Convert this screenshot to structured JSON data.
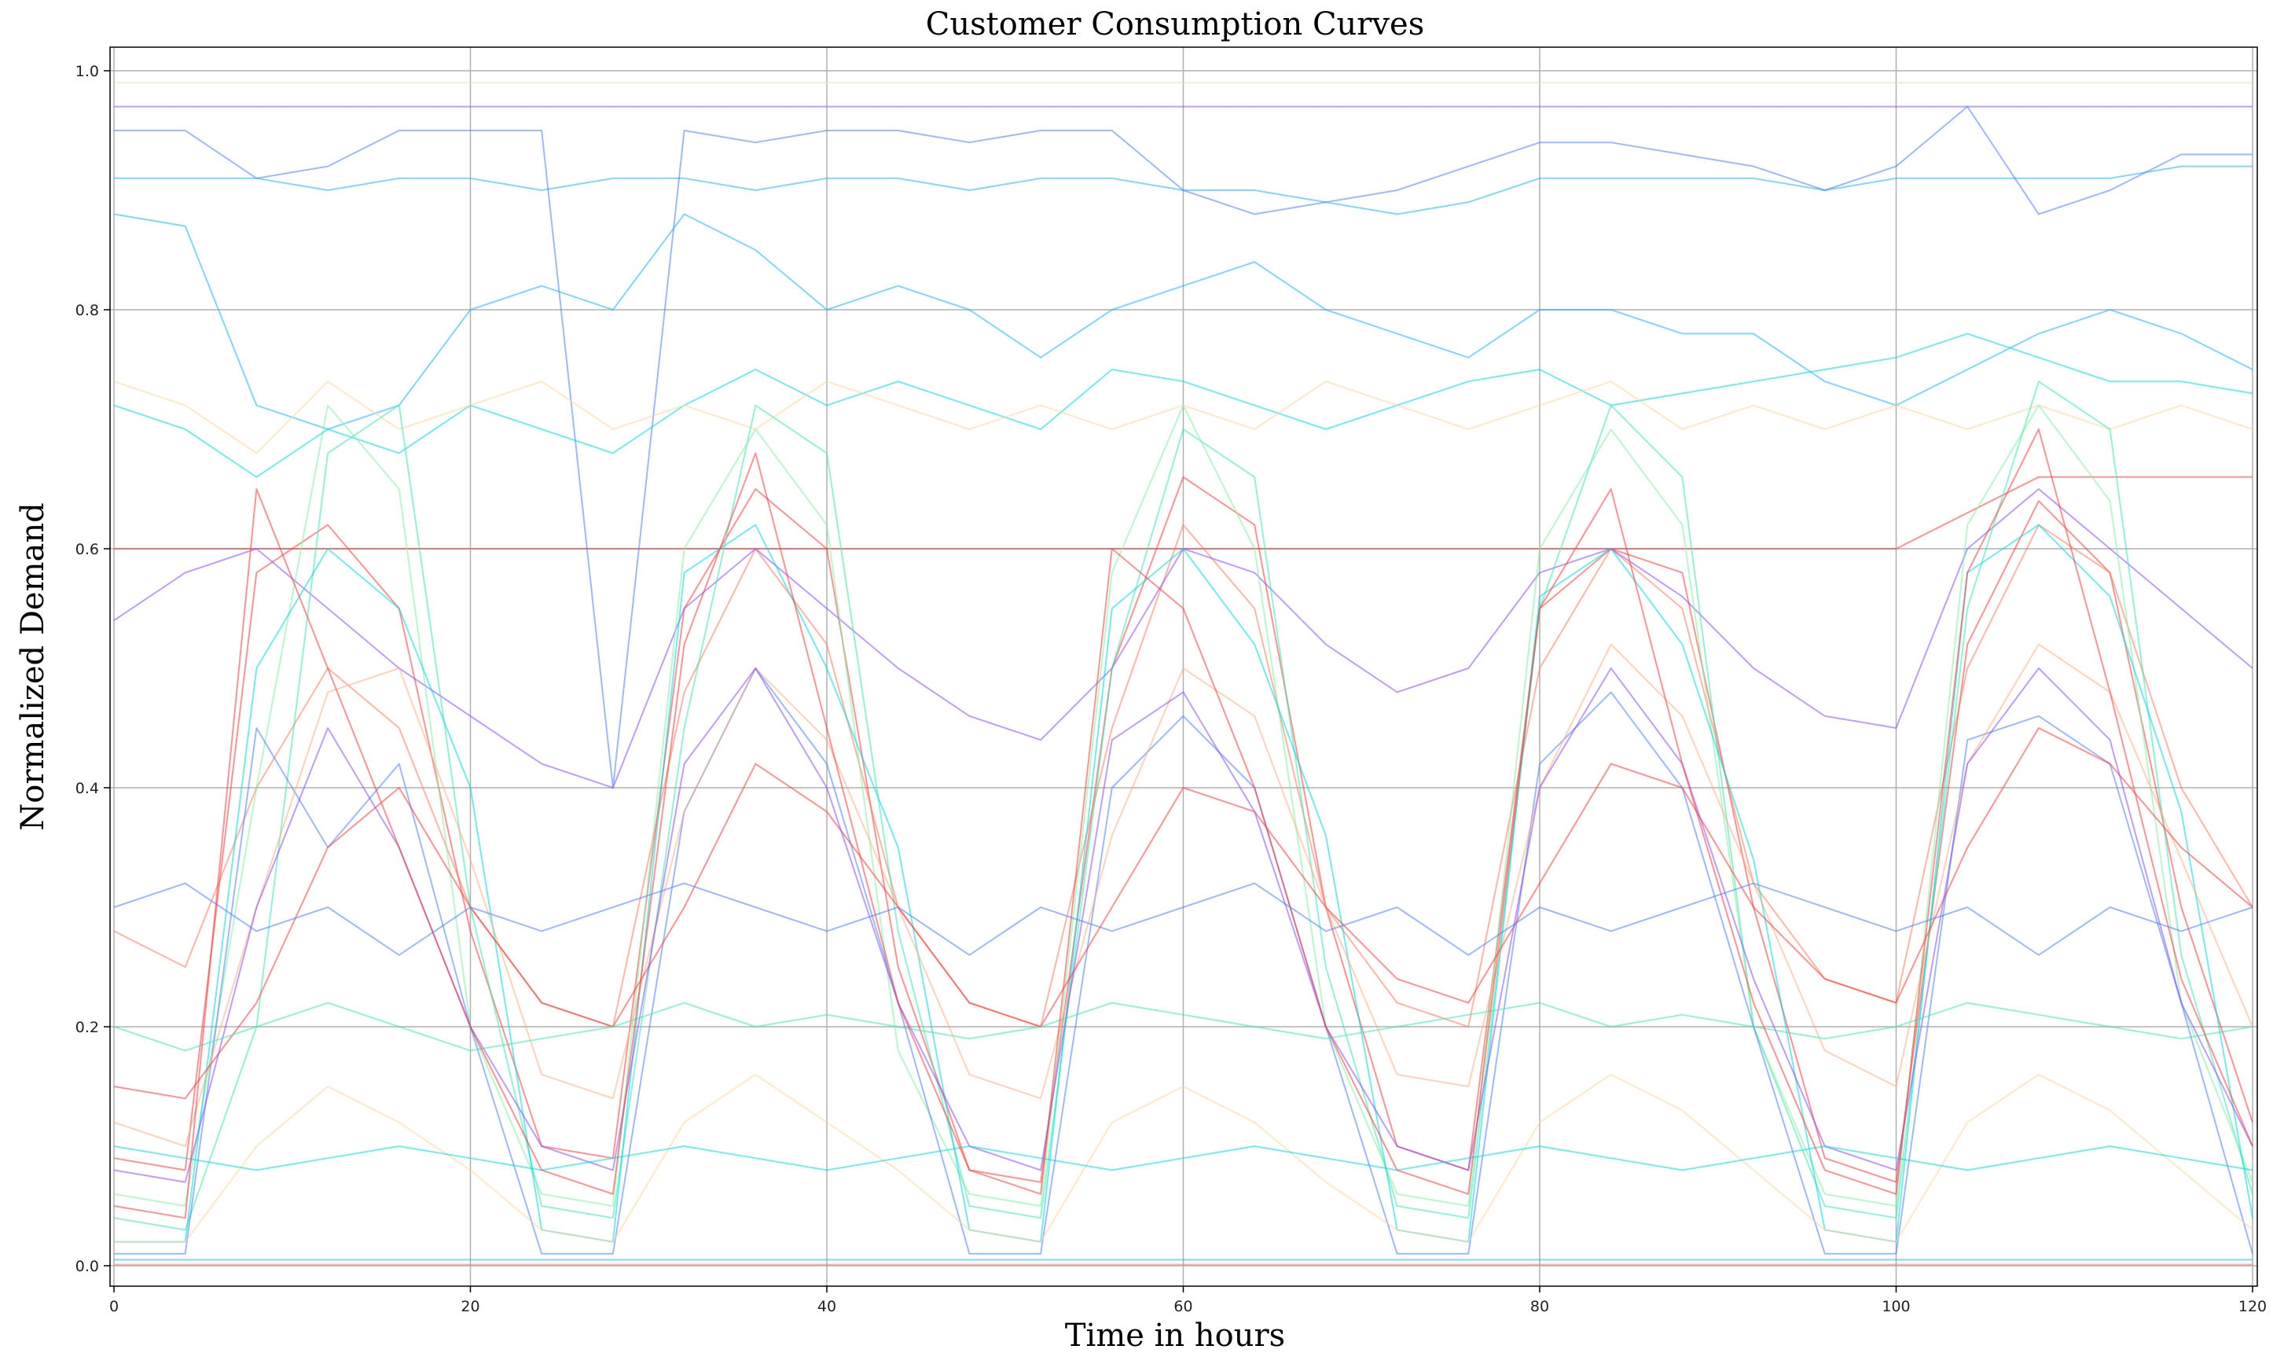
{
  "chart_data": {
    "type": "line",
    "title": "Customer Consumption Curves",
    "xlabel": "Time in hours",
    "ylabel": "Normalized Demand",
    "xlim": [
      0,
      120
    ],
    "ylim": [
      0,
      1.0
    ],
    "x_ticks": [
      0,
      20,
      40,
      60,
      80,
      100,
      120
    ],
    "y_ticks": [
      0.0,
      0.2,
      0.4,
      0.6,
      0.8,
      1.0
    ],
    "grid": true,
    "legend": "none",
    "line_opacity": 0.55,
    "palette": [
      "#8a4dff",
      "#4d7fff",
      "#19b5ff",
      "#00d9e0",
      "#3be8b0",
      "#7ff0a0",
      "#c8f0a0",
      "#ffd49a",
      "#ffad80",
      "#ff7a5c",
      "#ff3b3b"
    ],
    "x": [
      0,
      4,
      8,
      12,
      16,
      20,
      24,
      28,
      32,
      36,
      40,
      44,
      48,
      52,
      56,
      60,
      64,
      68,
      72,
      76,
      80,
      84,
      88,
      92,
      96,
      100,
      104,
      108,
      112,
      116,
      120
    ],
    "series": [
      {
        "color": "#ff3b3b",
        "values": [
          0.09,
          0.08,
          0.58,
          0.62,
          0.55,
          0.28,
          0.1,
          0.09,
          0.55,
          0.65,
          0.6,
          0.25,
          0.08,
          0.07,
          0.5,
          0.66,
          0.62,
          0.3,
          0.1,
          0.08,
          0.55,
          0.6,
          0.58,
          0.3,
          0.09,
          0.07,
          0.52,
          0.64,
          0.58,
          0.3,
          0.12
        ]
      },
      {
        "color": "#ff7a5c",
        "values": [
          0.28,
          0.25,
          0.4,
          0.5,
          0.45,
          0.3,
          0.22,
          0.2,
          0.48,
          0.6,
          0.52,
          0.3,
          0.22,
          0.2,
          0.45,
          0.62,
          0.55,
          0.3,
          0.22,
          0.2,
          0.5,
          0.6,
          0.55,
          0.32,
          0.24,
          0.22,
          0.5,
          0.62,
          0.58,
          0.4,
          0.3
        ]
      },
      {
        "color": "#ff3b3b",
        "values": [
          0.6,
          0.6,
          0.6,
          0.6,
          0.6,
          0.6,
          0.6,
          0.6,
          0.6,
          0.6,
          0.6,
          0.6,
          0.6,
          0.6,
          0.6,
          0.6,
          0.6,
          0.6,
          0.6,
          0.6,
          0.6,
          0.6,
          0.6,
          0.6,
          0.6,
          0.6,
          0.63,
          0.66,
          0.66,
          0.66,
          0.66
        ]
      },
      {
        "color": "#8a4dff",
        "values": [
          0.97,
          0.97,
          0.97,
          0.97,
          0.97,
          0.97,
          0.97,
          0.97,
          0.97,
          0.97,
          0.97,
          0.97,
          0.97,
          0.97,
          0.97,
          0.97,
          0.97,
          0.97,
          0.97,
          0.97,
          0.97,
          0.97,
          0.97,
          0.97,
          0.97,
          0.97,
          0.97,
          0.97,
          0.97,
          0.97,
          0.97
        ]
      },
      {
        "color": "#c8f0a0",
        "values": [
          0.99,
          0.99,
          0.99,
          0.99,
          0.99,
          0.99,
          0.99,
          0.99,
          0.99,
          0.99,
          0.99,
          0.99,
          0.99,
          0.99,
          0.99,
          0.99,
          0.99,
          0.99,
          0.99,
          0.99,
          0.99,
          0.99,
          0.99,
          0.99,
          0.99,
          0.99,
          0.99,
          0.99,
          0.99,
          0.99,
          0.99
        ]
      },
      {
        "color": "#19b5ff",
        "values": [
          0.91,
          0.91,
          0.91,
          0.9,
          0.91,
          0.91,
          0.9,
          0.91,
          0.91,
          0.9,
          0.91,
          0.91,
          0.9,
          0.91,
          0.91,
          0.9,
          0.9,
          0.89,
          0.88,
          0.89,
          0.91,
          0.91,
          0.91,
          0.91,
          0.9,
          0.91,
          0.91,
          0.91,
          0.91,
          0.92,
          0.92
        ]
      },
      {
        "color": "#4d7fff",
        "values": [
          0.95,
          0.95,
          0.91,
          0.92,
          0.95,
          0.95,
          0.95,
          0.4,
          0.95,
          0.94,
          0.95,
          0.95,
          0.94,
          0.95,
          0.95,
          0.9,
          0.88,
          0.89,
          0.9,
          0.92,
          0.94,
          0.94,
          0.93,
          0.92,
          0.9,
          0.92,
          0.97,
          0.88,
          0.9,
          0.93,
          0.93
        ]
      },
      {
        "color": "#19b5ff",
        "values": [
          0.88,
          0.87,
          0.72,
          0.7,
          0.72,
          0.8,
          0.82,
          0.8,
          0.88,
          0.85,
          0.8,
          0.82,
          0.8,
          0.76,
          0.8,
          0.82,
          0.84,
          0.8,
          0.78,
          0.76,
          0.8,
          0.8,
          0.78,
          0.78,
          0.74,
          0.72,
          0.75,
          0.78,
          0.8,
          0.78,
          0.75
        ]
      },
      {
        "color": "#00d9e0",
        "values": [
          0.72,
          0.7,
          0.66,
          0.7,
          0.68,
          0.72,
          0.7,
          0.68,
          0.72,
          0.75,
          0.72,
          0.74,
          0.72,
          0.7,
          0.75,
          0.74,
          0.72,
          0.7,
          0.72,
          0.74,
          0.75,
          0.72,
          0.73,
          0.74,
          0.75,
          0.76,
          0.78,
          0.76,
          0.74,
          0.74,
          0.73
        ]
      },
      {
        "color": "#ffd49a",
        "values": [
          0.74,
          0.72,
          0.68,
          0.74,
          0.7,
          0.72,
          0.74,
          0.7,
          0.72,
          0.7,
          0.74,
          0.72,
          0.7,
          0.72,
          0.7,
          0.72,
          0.7,
          0.74,
          0.72,
          0.7,
          0.72,
          0.74,
          0.7,
          0.72,
          0.7,
          0.72,
          0.7,
          0.72,
          0.7,
          0.72,
          0.7
        ]
      },
      {
        "color": "#8a4dff",
        "values": [
          0.54,
          0.58,
          0.6,
          0.55,
          0.5,
          0.46,
          0.42,
          0.4,
          0.55,
          0.6,
          0.55,
          0.5,
          0.46,
          0.44,
          0.5,
          0.6,
          0.58,
          0.52,
          0.48,
          0.5,
          0.58,
          0.6,
          0.56,
          0.5,
          0.46,
          0.45,
          0.6,
          0.65,
          0.6,
          0.55,
          0.5
        ]
      },
      {
        "color": "#3be8b0",
        "values": [
          0.04,
          0.03,
          0.2,
          0.68,
          0.72,
          0.3,
          0.05,
          0.04,
          0.45,
          0.72,
          0.68,
          0.28,
          0.05,
          0.04,
          0.5,
          0.7,
          0.66,
          0.25,
          0.05,
          0.04,
          0.55,
          0.72,
          0.66,
          0.2,
          0.05,
          0.04,
          0.55,
          0.74,
          0.7,
          0.26,
          0.06
        ]
      },
      {
        "color": "#7ff0a0",
        "values": [
          0.06,
          0.05,
          0.4,
          0.72,
          0.65,
          0.2,
          0.06,
          0.05,
          0.6,
          0.7,
          0.62,
          0.18,
          0.06,
          0.05,
          0.58,
          0.72,
          0.6,
          0.2,
          0.06,
          0.05,
          0.6,
          0.7,
          0.62,
          0.2,
          0.06,
          0.05,
          0.62,
          0.72,
          0.64,
          0.22,
          0.07
        ]
      },
      {
        "color": "#00d9e0",
        "values": [
          0.02,
          0.02,
          0.5,
          0.6,
          0.55,
          0.4,
          0.03,
          0.02,
          0.58,
          0.62,
          0.5,
          0.35,
          0.03,
          0.02,
          0.55,
          0.6,
          0.52,
          0.36,
          0.03,
          0.02,
          0.56,
          0.6,
          0.52,
          0.34,
          0.03,
          0.02,
          0.58,
          0.62,
          0.56,
          0.38,
          0.04
        ]
      },
      {
        "color": "#4d7fff",
        "values": [
          0.01,
          0.01,
          0.45,
          0.35,
          0.42,
          0.2,
          0.01,
          0.01,
          0.38,
          0.5,
          0.42,
          0.22,
          0.01,
          0.01,
          0.4,
          0.46,
          0.4,
          0.2,
          0.01,
          0.01,
          0.42,
          0.48,
          0.4,
          0.2,
          0.01,
          0.01,
          0.44,
          0.46,
          0.42,
          0.22,
          0.01
        ]
      },
      {
        "color": "#ffad80",
        "values": [
          0.12,
          0.1,
          0.3,
          0.48,
          0.5,
          0.34,
          0.16,
          0.14,
          0.38,
          0.5,
          0.44,
          0.3,
          0.16,
          0.14,
          0.36,
          0.5,
          0.46,
          0.3,
          0.16,
          0.15,
          0.4,
          0.52,
          0.46,
          0.32,
          0.18,
          0.15,
          0.42,
          0.52,
          0.48,
          0.34,
          0.2
        ]
      },
      {
        "color": "#ff3b3b",
        "values": [
          0.15,
          0.14,
          0.22,
          0.35,
          0.4,
          0.3,
          0.22,
          0.2,
          0.3,
          0.42,
          0.38,
          0.3,
          0.22,
          0.2,
          0.3,
          0.4,
          0.38,
          0.3,
          0.24,
          0.22,
          0.32,
          0.42,
          0.4,
          0.3,
          0.24,
          0.22,
          0.35,
          0.45,
          0.42,
          0.35,
          0.3
        ]
      },
      {
        "color": "#8a4dff",
        "values": [
          0.08,
          0.07,
          0.3,
          0.45,
          0.35,
          0.2,
          0.1,
          0.08,
          0.42,
          0.5,
          0.4,
          0.22,
          0.1,
          0.08,
          0.44,
          0.48,
          0.38,
          0.2,
          0.1,
          0.08,
          0.4,
          0.5,
          0.42,
          0.24,
          0.1,
          0.08,
          0.42,
          0.5,
          0.44,
          0.22,
          0.1
        ]
      },
      {
        "color": "#ffd49a",
        "values": [
          0.02,
          0.02,
          0.1,
          0.15,
          0.12,
          0.08,
          0.03,
          0.02,
          0.12,
          0.16,
          0.12,
          0.08,
          0.03,
          0.02,
          0.12,
          0.15,
          0.12,
          0.07,
          0.03,
          0.02,
          0.12,
          0.16,
          0.13,
          0.08,
          0.03,
          0.02,
          0.12,
          0.16,
          0.13,
          0.08,
          0.03
        ]
      },
      {
        "color": "#19b5ff",
        "values": [
          0.005,
          0.005,
          0.005,
          0.005,
          0.005,
          0.005,
          0.005,
          0.005,
          0.005,
          0.005,
          0.005,
          0.005,
          0.005,
          0.005,
          0.005,
          0.005,
          0.005,
          0.005,
          0.005,
          0.005,
          0.005,
          0.005,
          0.005,
          0.005,
          0.005,
          0.005,
          0.005,
          0.005,
          0.005,
          0.005,
          0.005
        ]
      },
      {
        "color": "#ff7a5c",
        "values": [
          0.001,
          0.001,
          0.001,
          0.001,
          0.001,
          0.001,
          0.001,
          0.001,
          0.001,
          0.001,
          0.001,
          0.001,
          0.001,
          0.001,
          0.001,
          0.001,
          0.001,
          0.001,
          0.001,
          0.001,
          0.001,
          0.001,
          0.001,
          0.001,
          0.001,
          0.001,
          0.001,
          0.001,
          0.001,
          0.001,
          0.001
        ]
      },
      {
        "color": "#3be8b0",
        "values": [
          0.2,
          0.18,
          0.2,
          0.22,
          0.2,
          0.18,
          0.19,
          0.2,
          0.22,
          0.2,
          0.21,
          0.2,
          0.19,
          0.2,
          0.22,
          0.21,
          0.2,
          0.19,
          0.2,
          0.21,
          0.22,
          0.2,
          0.21,
          0.2,
          0.19,
          0.2,
          0.22,
          0.21,
          0.2,
          0.19,
          0.2
        ]
      },
      {
        "color": "#00d9e0",
        "values": [
          0.1,
          0.09,
          0.08,
          0.09,
          0.1,
          0.09,
          0.08,
          0.09,
          0.1,
          0.09,
          0.08,
          0.09,
          0.1,
          0.09,
          0.08,
          0.09,
          0.1,
          0.09,
          0.08,
          0.09,
          0.1,
          0.09,
          0.08,
          0.09,
          0.1,
          0.09,
          0.08,
          0.09,
          0.1,
          0.09,
          0.08
        ]
      },
      {
        "color": "#ff3b3b",
        "values": [
          0.05,
          0.04,
          0.65,
          0.5,
          0.35,
          0.2,
          0.08,
          0.06,
          0.52,
          0.68,
          0.45,
          0.22,
          0.08,
          0.06,
          0.6,
          0.55,
          0.4,
          0.2,
          0.08,
          0.06,
          0.55,
          0.65,
          0.42,
          0.22,
          0.08,
          0.06,
          0.58,
          0.7,
          0.48,
          0.24,
          0.1
        ]
      },
      {
        "color": "#4d7fff",
        "values": [
          0.3,
          0.32,
          0.28,
          0.3,
          0.26,
          0.3,
          0.28,
          0.3,
          0.32,
          0.3,
          0.28,
          0.3,
          0.26,
          0.3,
          0.28,
          0.3,
          0.32,
          0.28,
          0.3,
          0.26,
          0.3,
          0.28,
          0.3,
          0.32,
          0.3,
          0.28,
          0.3,
          0.26,
          0.3,
          0.28,
          0.3
        ]
      }
    ]
  }
}
